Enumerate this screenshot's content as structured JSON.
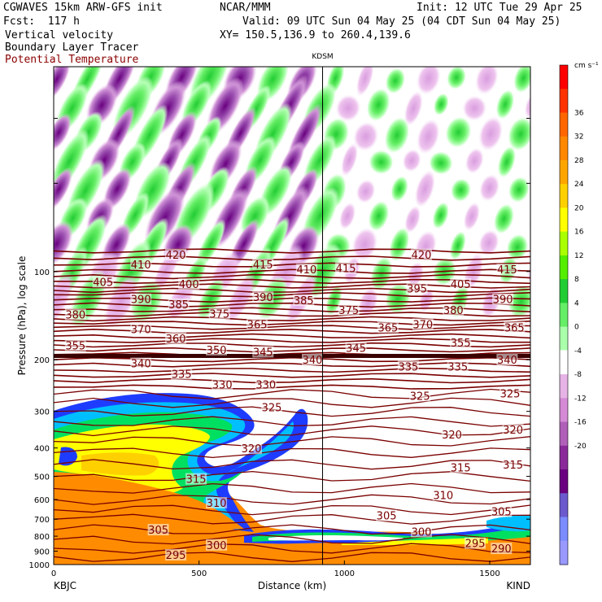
{
  "header": {
    "model": "CGWAVES 15km ARW-GFS init",
    "org": "NCAR/MMM",
    "init": "Init: 12 UTC Tue 29 Apr 25",
    "fcst": "Fcst:  117 h",
    "valid": "Valid: 09 UTC Sun 04 May 25 (04 CDT Sun 04 May 25)",
    "field1": "Vertical velocity",
    "field2": "Boundary Layer Tracer",
    "xy": "XY= 150.5,136.9 to 260.4,139.6",
    "field3": "Potential Temperature",
    "field3_color": "#8b0000"
  },
  "chart_data": {
    "type": "heatmap",
    "xlabel": "Distance (km)",
    "ylabel": "Pressure (hPa), log scale",
    "x_ticks": [
      "0",
      "500",
      "1000",
      "1500"
    ],
    "xlim": [
      0,
      1640
    ],
    "y_ticks": [
      "100",
      "200",
      "300",
      "400",
      "500",
      "600",
      "700",
      "800",
      "900",
      "1000"
    ],
    "ylim_hpa": [
      1000,
      20
    ],
    "y_scale": "log",
    "left_station": "KBJC",
    "right_station": "KIND",
    "marker_station": "KDSM",
    "marker_x_km": 925,
    "colorbar": {
      "unit": "cm s⁻¹",
      "labels": [
        "36",
        "32",
        "28",
        "24",
        "20",
        "16",
        "12",
        "8",
        "4",
        "0",
        "-4",
        "-8",
        "-12",
        "-16",
        "-20"
      ],
      "colors": [
        "#ff0000",
        "#ff3300",
        "#ff6600",
        "#ff8800",
        "#ffa500",
        "#ffd000",
        "#ffff00",
        "#aaff00",
        "#55ee00",
        "#22cc33",
        "#66ee66",
        "#aaffaa",
        "#ffffff",
        "#e6b3e6",
        "#d48ad4",
        "#b060b8",
        "#8a2a9a",
        "#6a0080",
        "#6a5acd",
        "#7b8cff",
        "#9999ff"
      ]
    },
    "theta_labels": [
      {
        "text": "420",
        "x": 420,
        "p": 88
      },
      {
        "text": "420",
        "x": 1265,
        "p": 88
      },
      {
        "text": "410",
        "x": 300,
        "p": 95
      },
      {
        "text": "415",
        "x": 720,
        "p": 95
      },
      {
        "text": "410",
        "x": 870,
        "p": 99
      },
      {
        "text": "415",
        "x": 1005,
        "p": 98
      },
      {
        "text": "415",
        "x": 1560,
        "p": 99
      },
      {
        "text": "405",
        "x": 170,
        "p": 109
      },
      {
        "text": "400",
        "x": 465,
        "p": 111
      },
      {
        "text": "395",
        "x": 1250,
        "p": 115
      },
      {
        "text": "405",
        "x": 1400,
        "p": 111
      },
      {
        "text": "390",
        "x": 300,
        "p": 125
      },
      {
        "text": "390",
        "x": 720,
        "p": 123
      },
      {
        "text": "385",
        "x": 860,
        "p": 126
      },
      {
        "text": "385",
        "x": 430,
        "p": 130
      },
      {
        "text": "390",
        "x": 1545,
        "p": 125
      },
      {
        "text": "380",
        "x": 75,
        "p": 141
      },
      {
        "text": "375",
        "x": 570,
        "p": 140
      },
      {
        "text": "375",
        "x": 1015,
        "p": 136
      },
      {
        "text": "380",
        "x": 1375,
        "p": 136
      },
      {
        "text": "370",
        "x": 300,
        "p": 158
      },
      {
        "text": "365",
        "x": 700,
        "p": 152
      },
      {
        "text": "365",
        "x": 1150,
        "p": 156
      },
      {
        "text": "370",
        "x": 1270,
        "p": 152
      },
      {
        "text": "365",
        "x": 1585,
        "p": 156
      },
      {
        "text": "360",
        "x": 420,
        "p": 170
      },
      {
        "text": "355",
        "x": 75,
        "p": 180
      },
      {
        "text": "350",
        "x": 560,
        "p": 186
      },
      {
        "text": "345",
        "x": 720,
        "p": 189
      },
      {
        "text": "345",
        "x": 1040,
        "p": 183
      },
      {
        "text": "355",
        "x": 1400,
        "p": 176
      },
      {
        "text": "340",
        "x": 300,
        "p": 207
      },
      {
        "text": "340",
        "x": 890,
        "p": 201
      },
      {
        "text": "340",
        "x": 1560,
        "p": 201
      },
      {
        "text": "335",
        "x": 440,
        "p": 225
      },
      {
        "text": "335",
        "x": 1220,
        "p": 212
      },
      {
        "text": "335",
        "x": 1390,
        "p": 212
      },
      {
        "text": "330",
        "x": 580,
        "p": 244
      },
      {
        "text": "330",
        "x": 730,
        "p": 244
      },
      {
        "text": "325",
        "x": 1260,
        "p": 267
      },
      {
        "text": "325",
        "x": 1570,
        "p": 262
      },
      {
        "text": "325",
        "x": 750,
        "p": 292
      },
      {
        "text": "320",
        "x": 1370,
        "p": 362
      },
      {
        "text": "320",
        "x": 1580,
        "p": 348
      },
      {
        "text": "320",
        "x": 680,
        "p": 404
      },
      {
        "text": "315",
        "x": 1400,
        "p": 469
      },
      {
        "text": "315",
        "x": 1580,
        "p": 458
      },
      {
        "text": "315",
        "x": 490,
        "p": 513
      },
      {
        "text": "310",
        "x": 1340,
        "p": 582
      },
      {
        "text": "310",
        "x": 560,
        "p": 619
      },
      {
        "text": "305",
        "x": 1145,
        "p": 684
      },
      {
        "text": "305",
        "x": 1540,
        "p": 663
      },
      {
        "text": "305",
        "x": 360,
        "p": 765
      },
      {
        "text": "300",
        "x": 1265,
        "p": 777
      },
      {
        "text": "300",
        "x": 560,
        "p": 862
      },
      {
        "text": "295",
        "x": 1450,
        "p": 850
      },
      {
        "text": "295",
        "x": 420,
        "p": 932
      },
      {
        "text": "290",
        "x": 1540,
        "p": 886
      }
    ]
  }
}
